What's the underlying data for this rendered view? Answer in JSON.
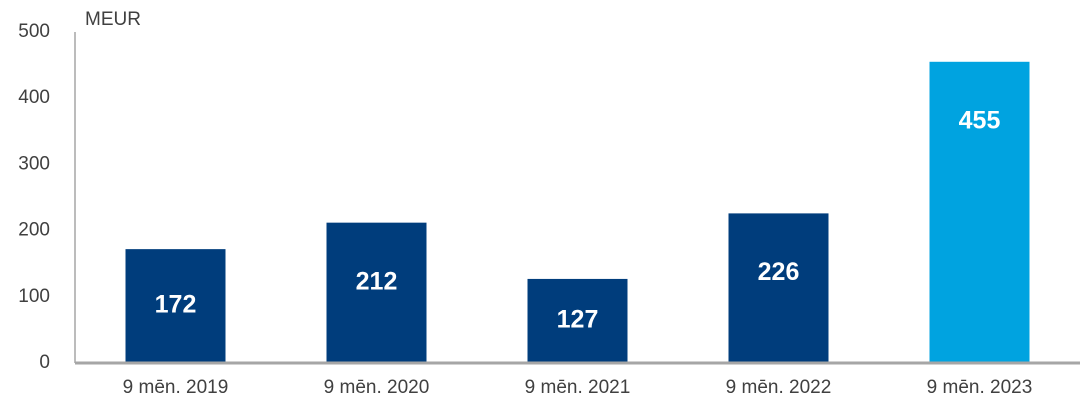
{
  "chart_data": {
    "type": "bar",
    "y_label": "MEUR",
    "categories": [
      "9 mēn. 2019",
      "9 mēn. 2020",
      "9 mēn. 2021",
      "9 mēn. 2022",
      "9 mēn. 2023"
    ],
    "values": [
      172,
      212,
      127,
      226,
      455
    ],
    "colors": [
      "#003d7c",
      "#003d7c",
      "#003d7c",
      "#003d7c",
      "#00a3e0"
    ],
    "ylim": [
      0,
      500
    ],
    "yticks": [
      0,
      100,
      200,
      300,
      400,
      500
    ],
    "grid": false
  }
}
